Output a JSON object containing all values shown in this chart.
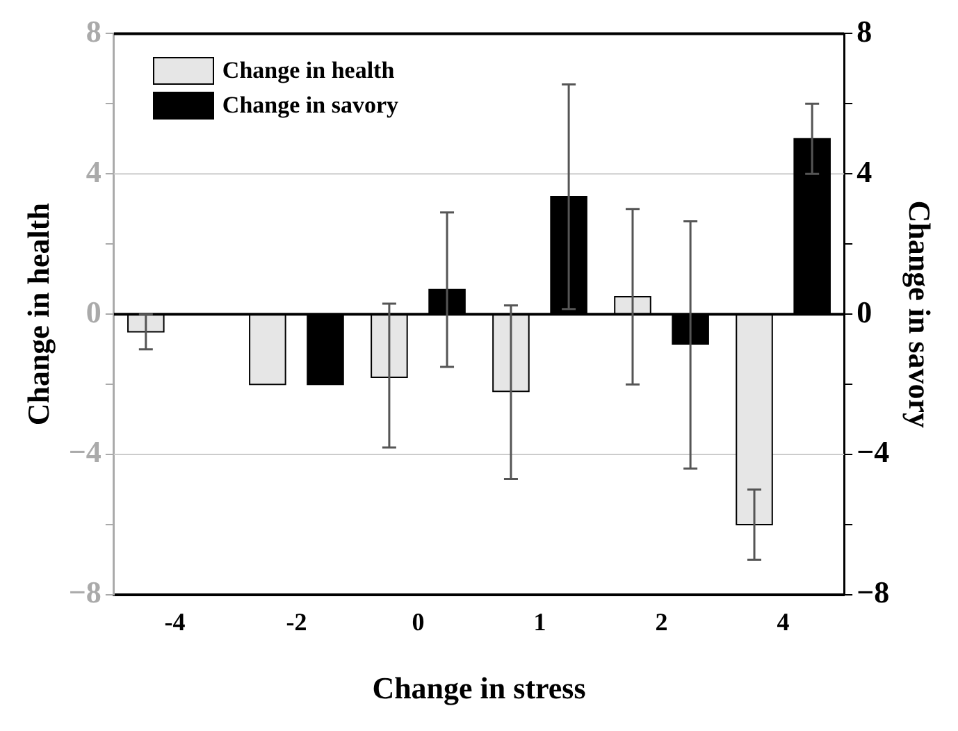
{
  "chart_data": {
    "type": "bar",
    "xlabel": "Change in stress",
    "ylabel": "Change in health",
    "y2label": "Change in savory",
    "categories": [
      "-4",
      "-2",
      "0",
      "1",
      "2",
      "4"
    ],
    "series": [
      {
        "name": "Change in health",
        "color": "#e6e6e6",
        "values": [
          -0.5,
          -2,
          -1.8,
          -2.2,
          0.5,
          -6
        ],
        "errors": [
          [
            -1,
            0
          ],
          null,
          [
            -3.8,
            0.3
          ],
          [
            -4.7,
            0.25
          ],
          [
            -2,
            3
          ],
          [
            -7,
            -5
          ]
        ]
      },
      {
        "name": "Change in savory",
        "color": "#000000",
        "axis": "y2",
        "values": [
          null,
          -2,
          0.7,
          3.35,
          -0.85,
          5
        ],
        "errors": [
          null,
          null,
          [
            -1.5,
            2.9
          ],
          [
            0.15,
            6.55
          ],
          [
            -4.4,
            2.65
          ],
          [
            4,
            6
          ]
        ]
      }
    ],
    "ylim": [
      -8,
      8
    ],
    "yticks": [
      {
        "value": -8,
        "label": "−8"
      },
      {
        "value": -6,
        "label": null
      },
      {
        "value": -4,
        "label": "−4"
      },
      {
        "value": -2,
        "label": null
      },
      0,
      {
        "value": 2,
        "label": null
      },
      4,
      {
        "value": 6,
        "label": null
      },
      8
    ],
    "y2lim": [
      -8,
      8
    ],
    "y2ticks": [
      {
        "value": -8,
        "label": "−8"
      },
      {
        "value": -6,
        "label": null
      },
      {
        "value": -4,
        "label": "−4"
      },
      {
        "value": -2,
        "label": null
      },
      0,
      {
        "value": 2,
        "label": null
      },
      4,
      {
        "value": 6,
        "label": null
      },
      8
    ],
    "ref_lines": [
      {
        "axis": "y",
        "value": 4,
        "color": "#cccccc"
      },
      {
        "axis": "y",
        "value": -4,
        "color": "#cccccc"
      },
      {
        "axis": "y",
        "value": 0,
        "color": "#000000"
      }
    ],
    "legend": "top left"
  }
}
